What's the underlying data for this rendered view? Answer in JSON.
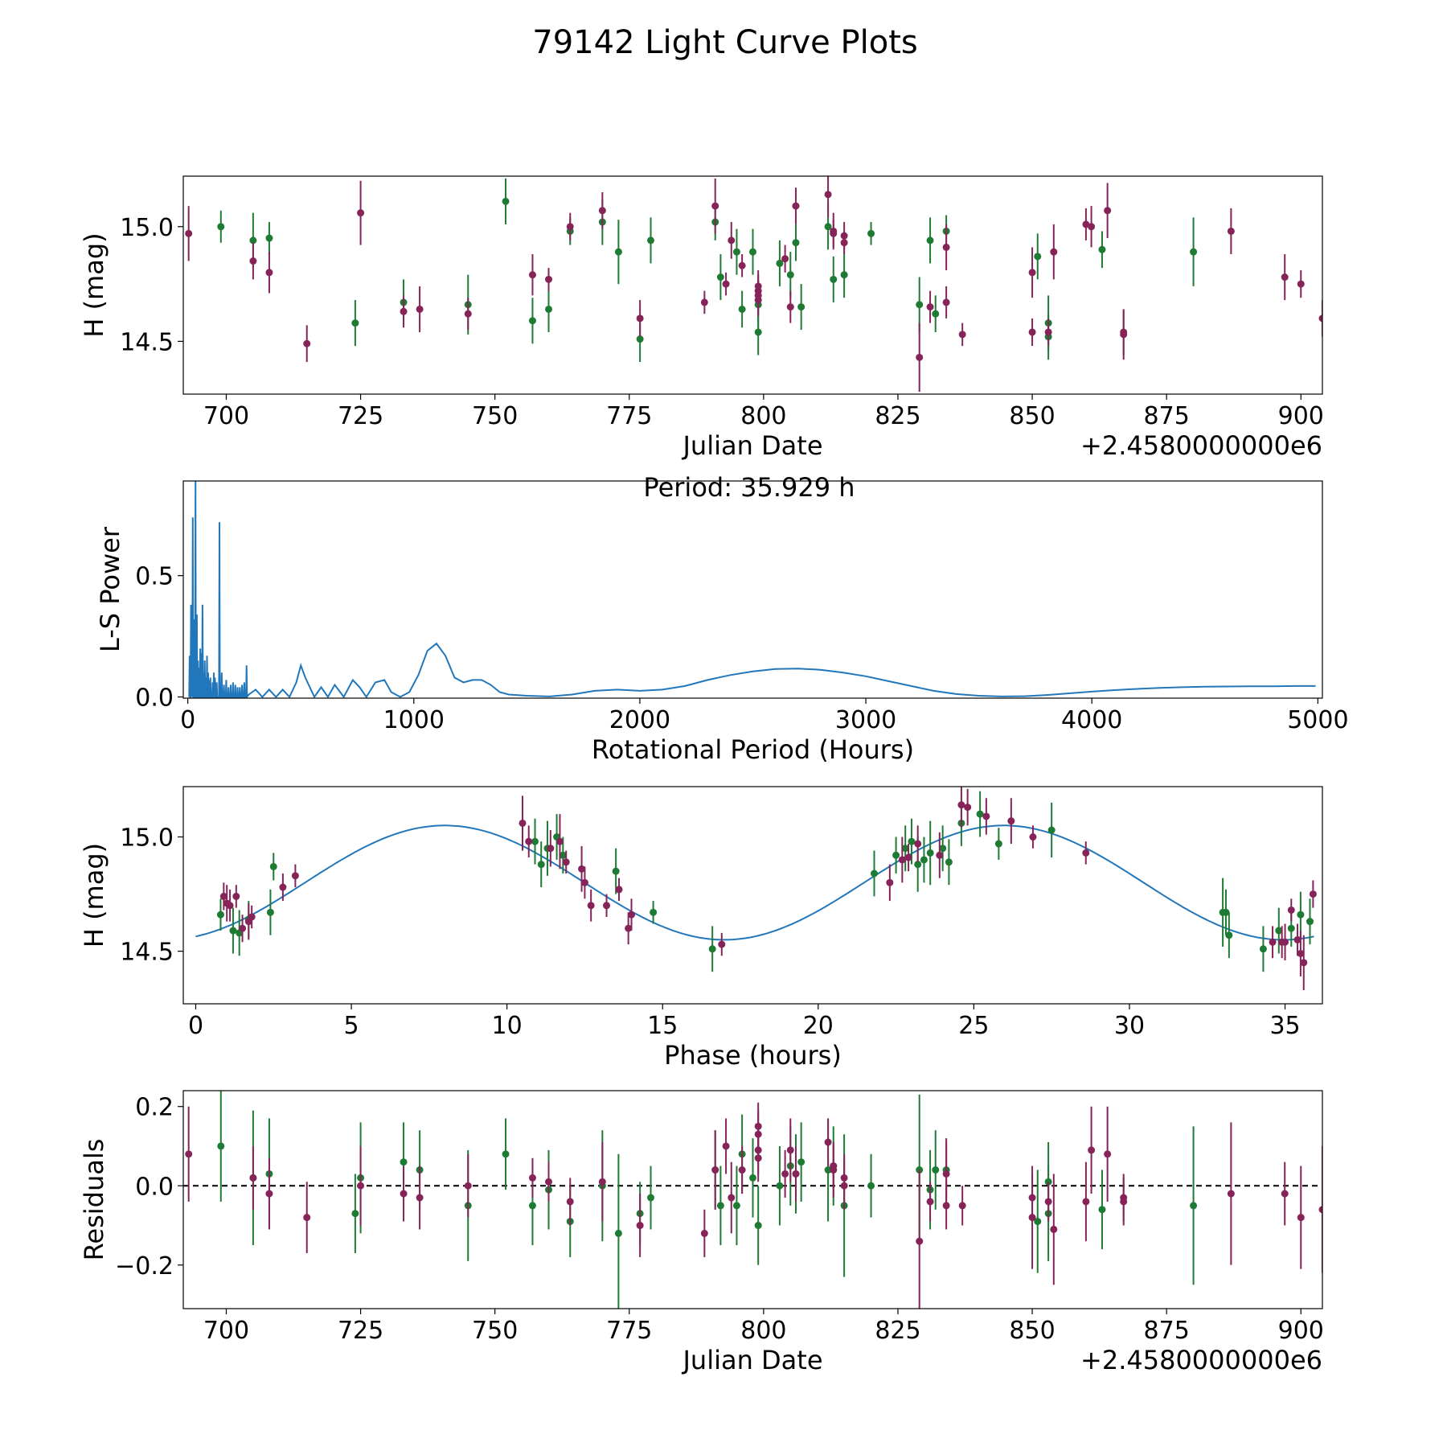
{
  "figure": {
    "title": "79142 Light Curve Plots"
  },
  "colors": {
    "series_a": "#1e7b34",
    "series_b": "#86245a",
    "line": "#2277bb"
  },
  "chart_data": [
    {
      "id": "lightcurve",
      "type": "scatter",
      "xlabel": "Julian Date",
      "ylabel": "H (mag)",
      "x_offset_label": "+2.4580000000e6",
      "xlim": [
        692,
        904
      ],
      "ylim": [
        14.27,
        15.22
      ],
      "xticks": [
        700,
        725,
        750,
        775,
        800,
        825,
        850,
        875,
        900
      ],
      "yticks": [
        14.5,
        15.0
      ],
      "series": [
        {
          "name": "green",
          "x": [
            699,
            705,
            708,
            724,
            733,
            745,
            752,
            757,
            760,
            764,
            770,
            773,
            777,
            779,
            791,
            792,
            795,
            796,
            798,
            799,
            799,
            803,
            805,
            806,
            807,
            812,
            813,
            815,
            820,
            829,
            831,
            832,
            834,
            851,
            853,
            853,
            863,
            880
          ],
          "y": [
            15.0,
            14.94,
            14.95,
            14.58,
            14.67,
            14.66,
            15.11,
            14.59,
            14.64,
            14.98,
            15.02,
            14.89,
            14.51,
            14.94,
            15.02,
            14.78,
            14.89,
            14.64,
            14.89,
            14.54,
            14.66,
            14.84,
            14.79,
            14.93,
            14.65,
            15.0,
            14.77,
            14.79,
            14.97,
            14.66,
            14.94,
            14.62,
            14.98,
            14.87,
            14.52,
            14.58,
            14.9,
            14.89
          ],
          "err": [
            0.07,
            0.12,
            0.07,
            0.1,
            0.1,
            0.13,
            0.1,
            0.1,
            0.1,
            0.06,
            0.1,
            0.14,
            0.1,
            0.1,
            0.08,
            0.1,
            0.1,
            0.08,
            0.1,
            0.1,
            0.1,
            0.1,
            0.1,
            0.08,
            0.1,
            0.1,
            0.1,
            0.1,
            0.05,
            0.12,
            0.1,
            0.08,
            0.07,
            0.1,
            0.1,
            0.12,
            0.08,
            0.15
          ]
        },
        {
          "name": "purple",
          "x": [
            693,
            705,
            708,
            715,
            725,
            733,
            736,
            745,
            757,
            760,
            764,
            770,
            777,
            789,
            791,
            793,
            794,
            796,
            799,
            799,
            799,
            799,
            804,
            805,
            806,
            812,
            813,
            813,
            815,
            815,
            829,
            831,
            834,
            834,
            837,
            850,
            850,
            853,
            854,
            860,
            861,
            864,
            867,
            867,
            887,
            897,
            900,
            904
          ],
          "y": [
            14.97,
            14.85,
            14.8,
            14.49,
            15.06,
            14.63,
            14.64,
            14.62,
            14.79,
            14.77,
            15.0,
            15.07,
            14.6,
            14.67,
            15.09,
            14.75,
            14.94,
            14.83,
            14.68,
            14.7,
            14.72,
            14.74,
            14.86,
            14.65,
            15.09,
            15.14,
            14.97,
            14.98,
            14.93,
            14.96,
            14.43,
            14.65,
            14.67,
            14.91,
            14.53,
            14.54,
            14.8,
            14.54,
            14.89,
            15.01,
            15.0,
            15.07,
            14.54,
            14.53,
            14.98,
            14.78,
            14.75,
            14.6
          ]
        }
      ],
      "series_err_purple": [
        0.12,
        0.08,
        0.09,
        0.08,
        0.14,
        0.07,
        0.1,
        0.07,
        0.09,
        0.05,
        0.06,
        0.08,
        0.08,
        0.05,
        0.12,
        0.05,
        0.08,
        0.05,
        0.07,
        0.07,
        0.07,
        0.07,
        0.06,
        0.07,
        0.08,
        0.1,
        0.06,
        0.08,
        0.05,
        0.06,
        0.15,
        0.07,
        0.07,
        0.1,
        0.05,
        0.06,
        0.11,
        0.06,
        0.12,
        0.07,
        0.09,
        0.12,
        0.1,
        0.11,
        0.1,
        0.1,
        0.06,
        0.08
      ]
    },
    {
      "id": "periodogram",
      "type": "line",
      "annotation": "Period: 35.929 h",
      "xlabel": "Rotational Period (Hours)",
      "ylabel": "L-S Power",
      "xlim": [
        -20,
        5020
      ],
      "ylim": [
        -0.005,
        0.89
      ],
      "xticks": [
        0,
        1000,
        2000,
        3000,
        4000,
        5000
      ],
      "yticks": [
        0.0,
        0.5
      ],
      "spikes_x": [
        8,
        14,
        18,
        22,
        25,
        30,
        34,
        36,
        40,
        45,
        50,
        55,
        60,
        65,
        70,
        75,
        80,
        85,
        90,
        95,
        100,
        110,
        115,
        120,
        128,
        140,
        150,
        160,
        170,
        180,
        190,
        200,
        210,
        220,
        230,
        240,
        250,
        260
      ],
      "spikes_y": [
        0.17,
        0.38,
        0.21,
        0.74,
        0.22,
        0.32,
        0.89,
        0.2,
        0.34,
        0.15,
        0.12,
        0.2,
        0.18,
        0.38,
        0.1,
        0.15,
        0.08,
        0.17,
        0.1,
        0.07,
        0.08,
        0.06,
        0.1,
        0.08,
        0.06,
        0.72,
        0.1,
        0.05,
        0.07,
        0.04,
        0.05,
        0.06,
        0.05,
        0.04,
        0.04,
        0.05,
        0.06,
        0.13
      ],
      "curve_x": [
        270,
        300,
        330,
        360,
        390,
        420,
        450,
        480,
        500,
        520,
        560,
        590,
        620,
        650,
        690,
        730,
        760,
        790,
        830,
        870,
        900,
        940,
        980,
        1020,
        1060,
        1100,
        1140,
        1180,
        1220,
        1260,
        1300,
        1340,
        1380,
        1420,
        1500,
        1600,
        1700,
        1800,
        1900,
        2000,
        2100,
        2200,
        2300,
        2400,
        2500,
        2600,
        2700,
        2800,
        2900,
        3000,
        3100,
        3200,
        3300,
        3400,
        3500,
        3600,
        3700,
        3800,
        3900,
        4000,
        4100,
        4200,
        4300,
        4400,
        4500,
        4600,
        4700,
        4800,
        4900,
        4990
      ],
      "curve_y": [
        0.01,
        0.03,
        0.0,
        0.03,
        0.0,
        0.03,
        0.0,
        0.06,
        0.13,
        0.08,
        0.0,
        0.04,
        0.0,
        0.05,
        0.0,
        0.07,
        0.04,
        0.0,
        0.06,
        0.07,
        0.02,
        0.0,
        0.02,
        0.09,
        0.19,
        0.22,
        0.17,
        0.08,
        0.06,
        0.07,
        0.07,
        0.05,
        0.02,
        0.01,
        0.005,
        0.002,
        0.01,
        0.025,
        0.03,
        0.025,
        0.03,
        0.045,
        0.07,
        0.09,
        0.105,
        0.115,
        0.117,
        0.112,
        0.1,
        0.085,
        0.065,
        0.045,
        0.025,
        0.012,
        0.005,
        0.002,
        0.003,
        0.008,
        0.015,
        0.022,
        0.028,
        0.033,
        0.037,
        0.04,
        0.042,
        0.043,
        0.044,
        0.044,
        0.045,
        0.045
      ]
    },
    {
      "id": "phased",
      "type": "scatter",
      "xlabel": "Phase (hours)",
      "ylabel": "H (mag)",
      "xlim": [
        -0.4,
        36.2
      ],
      "ylim": [
        14.27,
        15.22
      ],
      "xticks": [
        0,
        5,
        10,
        15,
        20,
        25,
        30,
        35
      ],
      "yticks": [
        14.5,
        15.0
      ],
      "model": {
        "period_hours": 35.929,
        "mean": 14.8,
        "amplitude": 0.25,
        "peak_phase": 8.0
      },
      "series": [
        {
          "name": "green",
          "x": [
            0.8,
            1.2,
            1.4,
            1.7,
            2.4,
            2.5,
            10.9,
            11.1,
            11.3,
            11.6,
            11.8,
            13.5,
            14.7,
            16.6,
            21.8,
            22.5,
            22.8,
            23.0,
            23.2,
            23.4,
            23.6,
            24.0,
            24.2,
            24.6,
            25.2,
            25.8,
            27.5,
            33.0,
            33.1,
            33.2,
            34.3,
            34.8,
            35.2,
            35.5,
            35.8
          ],
          "y": [
            14.66,
            14.59,
            14.58,
            14.64,
            14.67,
            14.87,
            14.98,
            14.88,
            14.95,
            15.0,
            14.92,
            14.85,
            14.67,
            14.51,
            14.84,
            14.92,
            14.95,
            14.98,
            14.88,
            14.9,
            14.93,
            14.95,
            14.89,
            15.06,
            15.1,
            14.97,
            15.03,
            14.67,
            14.67,
            14.57,
            14.51,
            14.59,
            14.6,
            14.66,
            14.63
          ],
          "err": [
            0.07,
            0.1,
            0.1,
            0.08,
            0.1,
            0.06,
            0.1,
            0.1,
            0.12,
            0.1,
            0.08,
            0.1,
            0.05,
            0.1,
            0.1,
            0.08,
            0.1,
            0.1,
            0.12,
            0.1,
            0.14,
            0.1,
            0.1,
            0.1,
            0.1,
            0.07,
            0.12,
            0.15,
            0.1,
            0.1,
            0.1,
            0.1,
            0.08,
            0.1,
            0.1
          ]
        },
        {
          "name": "purple",
          "x": [
            0.9,
            1.0,
            1.1,
            1.3,
            1.5,
            1.7,
            1.8,
            2.8,
            3.2,
            10.5,
            10.7,
            11.4,
            11.7,
            11.9,
            12.4,
            12.5,
            12.7,
            13.2,
            13.6,
            13.9,
            14.0,
            16.9,
            22.3,
            22.7,
            22.9,
            23.2,
            23.9,
            24.6,
            24.8,
            25.4,
            26.2,
            26.9,
            28.6,
            34.6,
            34.9,
            35.0,
            35.2,
            35.4,
            35.5,
            35.6,
            35.9
          ],
          "y": [
            14.74,
            14.71,
            14.7,
            14.74,
            14.6,
            14.63,
            14.65,
            14.78,
            14.83,
            15.06,
            14.98,
            14.95,
            14.98,
            14.89,
            14.86,
            14.8,
            14.7,
            14.7,
            14.77,
            14.6,
            14.66,
            14.53,
            14.8,
            14.9,
            14.91,
            14.97,
            14.92,
            15.14,
            15.13,
            15.09,
            15.07,
            15.0,
            14.93,
            14.54,
            14.54,
            14.54,
            14.68,
            14.55,
            14.49,
            14.45,
            14.75
          ],
          "err": [
            0.06,
            0.08,
            0.07,
            0.05,
            0.06,
            0.08,
            0.05,
            0.06,
            0.05,
            0.12,
            0.07,
            0.08,
            0.12,
            0.05,
            0.1,
            0.07,
            0.07,
            0.05,
            0.05,
            0.07,
            0.07,
            0.05,
            0.08,
            0.1,
            0.06,
            0.08,
            0.1,
            0.1,
            0.08,
            0.08,
            0.1,
            0.05,
            0.05,
            0.07,
            0.07,
            0.08,
            0.05,
            0.07,
            0.1,
            0.12,
            0.06
          ]
        }
      ]
    },
    {
      "id": "residuals",
      "type": "scatter",
      "xlabel": "Julian Date",
      "ylabel": "Residuals",
      "x_offset_label": "+2.4580000000e6",
      "xlim": [
        692,
        904
      ],
      "ylim": [
        -0.31,
        0.24
      ],
      "xticks": [
        700,
        725,
        750,
        775,
        800,
        825,
        850,
        875,
        900
      ],
      "yticks": [
        -0.2,
        0.0,
        0.2
      ],
      "ytick_labels": [
        "−0.2",
        "0.0",
        "0.2"
      ],
      "series": [
        {
          "name": "green",
          "x": [
            699,
            705,
            708,
            724,
            725,
            733,
            736,
            745,
            752,
            757,
            760,
            764,
            770,
            773,
            777,
            779,
            791,
            792,
            795,
            796,
            798,
            799,
            803,
            805,
            806,
            807,
            812,
            813,
            815,
            820,
            829,
            831,
            832,
            834,
            851,
            853,
            853,
            863,
            880
          ],
          "y": [
            0.1,
            0.02,
            0.03,
            -0.07,
            0.02,
            0.06,
            0.04,
            -0.05,
            0.08,
            -0.05,
            -0.01,
            -0.09,
            0.0,
            -0.12,
            -0.07,
            -0.03,
            0.04,
            -0.05,
            -0.05,
            0.08,
            0.02,
            -0.1,
            0.0,
            0.05,
            0.03,
            0.06,
            0.04,
            0.05,
            -0.05,
            0.0,
            0.04,
            -0.01,
            0.04,
            0.04,
            -0.09,
            0.01,
            -0.07,
            -0.06,
            -0.05
          ],
          "err": [
            0.14,
            0.17,
            0.14,
            0.1,
            0.14,
            0.1,
            0.1,
            0.14,
            0.09,
            0.1,
            0.1,
            0.09,
            0.14,
            0.2,
            0.08,
            0.08,
            0.1,
            0.1,
            0.1,
            0.1,
            0.1,
            0.1,
            0.1,
            0.1,
            0.1,
            0.1,
            0.13,
            0.1,
            0.18,
            0.08,
            0.19,
            0.1,
            0.1,
            0.07,
            0.13,
            0.1,
            0.12,
            0.1,
            0.2
          ]
        },
        {
          "name": "purple",
          "x": [
            693,
            705,
            708,
            715,
            725,
            733,
            736,
            745,
            757,
            760,
            764,
            770,
            777,
            789,
            791,
            793,
            794,
            796,
            799,
            799,
            799,
            799,
            804,
            805,
            806,
            812,
            813,
            813,
            815,
            815,
            829,
            831,
            834,
            834,
            837,
            850,
            850,
            853,
            854,
            860,
            861,
            864,
            867,
            867,
            887,
            897,
            900,
            904
          ],
          "y": [
            0.08,
            0.02,
            -0.02,
            -0.08,
            0.0,
            -0.02,
            -0.03,
            0.0,
            0.02,
            0.01,
            -0.04,
            0.01,
            -0.1,
            -0.12,
            0.04,
            0.1,
            -0.03,
            0.04,
            0.07,
            0.09,
            0.13,
            0.15,
            0.03,
            0.09,
            0.03,
            0.11,
            0.04,
            0.05,
            0.02,
            0.0,
            -0.14,
            -0.04,
            -0.05,
            0.03,
            -0.05,
            -0.03,
            -0.08,
            -0.04,
            -0.11,
            -0.04,
            0.09,
            0.08,
            -0.03,
            -0.04,
            -0.02,
            -0.02,
            -0.08,
            -0.06
          ],
          "err": [
            0.12,
            0.08,
            0.09,
            0.09,
            0.1,
            0.07,
            0.08,
            0.08,
            0.05,
            0.05,
            0.06,
            0.1,
            0.08,
            0.06,
            0.1,
            0.07,
            0.09,
            0.06,
            0.06,
            0.06,
            0.06,
            0.06,
            0.06,
            0.08,
            0.07,
            0.06,
            0.07,
            0.05,
            0.06,
            0.06,
            0.18,
            0.05,
            0.06,
            0.09,
            0.05,
            0.06,
            0.13,
            0.05,
            0.14,
            0.1,
            0.11,
            0.12,
            0.06,
            0.06,
            0.18,
            0.08,
            0.13,
            0.16
          ]
        }
      ]
    }
  ]
}
